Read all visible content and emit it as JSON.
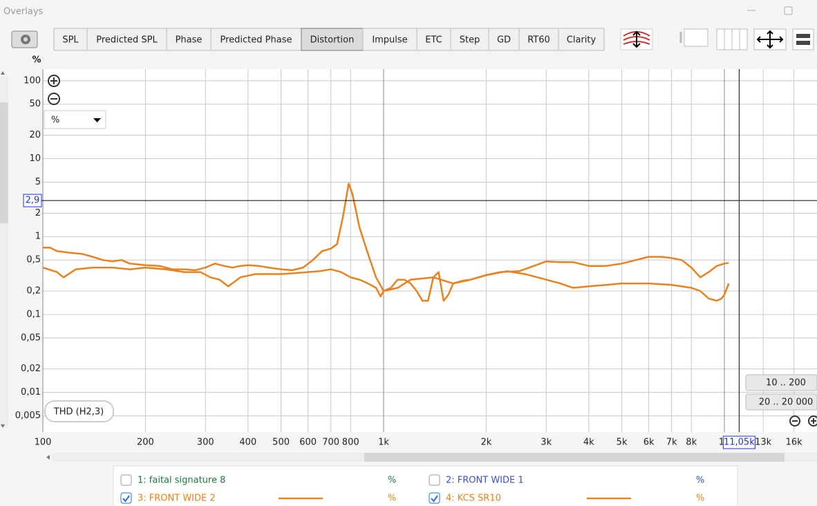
{
  "window_title": "Overlays",
  "tabs": [
    "SPL",
    "Predicted SPL",
    "Phase",
    "Predicted Phase",
    "Distortion",
    "Impulse",
    "ETC",
    "Step",
    "GD",
    "RT60",
    "Clarity"
  ],
  "active_tab": 4,
  "y_unit_label": "%",
  "unit_select": "%",
  "range_buttons": [
    "10 .. 200",
    "20 .. 20 000"
  ],
  "chart_data": {
    "type": "line",
    "trace_label": "THD (H2,3)",
    "xscale": "log",
    "yscale": "log",
    "grid": true,
    "xlim": [
      100,
      18700
    ],
    "ylim": [
      0.0031,
      141
    ],
    "xticks": [
      100,
      200,
      300,
      400,
      500,
      600,
      700,
      800,
      {
        "value": 1000,
        "label": "1k"
      },
      {
        "value": 2000,
        "label": "2k"
      },
      {
        "value": 3000,
        "label": "3k"
      },
      {
        "value": 4000,
        "label": "4k"
      },
      {
        "value": 5000,
        "label": "5k"
      },
      {
        "value": 6000,
        "label": "6k"
      },
      {
        "value": 7000,
        "label": "7k"
      },
      {
        "value": 8000,
        "label": "8k"
      },
      {
        "value": 10000,
        "label": "1"
      },
      {
        "value": 13000,
        "label": "13k"
      },
      {
        "value": 16000,
        "label": "16k"
      }
    ],
    "yticks": [
      100,
      50,
      20,
      10,
      5,
      2,
      1,
      {
        "value": 0.5,
        "label": "0,5"
      },
      {
        "value": 0.2,
        "label": "0,2"
      },
      {
        "value": 0.1,
        "label": "0,1"
      },
      {
        "value": 0.05,
        "label": "0,05"
      },
      {
        "value": 0.02,
        "label": "0,02"
      },
      {
        "value": 0.01,
        "label": "0,01"
      },
      {
        "value": 0.005,
        "label": "0,005"
      }
    ],
    "cursor": {
      "x": {
        "value": 11050,
        "label": "11,05k"
      },
      "y": {
        "value": 2.9,
        "label": "2,9"
      }
    },
    "series": [
      {
        "name": "1: faital signature 8",
        "color": "#1e7a3c",
        "checked": false,
        "unit": "%"
      },
      {
        "name": "2: FRONT WIDE 1",
        "color": "#3b4fc6",
        "checked": false,
        "unit": "%"
      },
      {
        "name": "3: FRONT WIDE 2",
        "color": "#e8821e",
        "checked": true,
        "unit": "%",
        "x": [
          100,
          105,
          110,
          120,
          130,
          140,
          150,
          160,
          170,
          180,
          200,
          220,
          240,
          260,
          280,
          300,
          320,
          340,
          360,
          380,
          400,
          430,
          460,
          500,
          540,
          580,
          620,
          660,
          700,
          730,
          760,
          790,
          810,
          850,
          900,
          950,
          1000,
          1050,
          1100,
          1150,
          1200,
          1250,
          1300,
          1350,
          1400,
          1450,
          1500,
          1550,
          1600,
          1700,
          1800,
          2000,
          2200,
          2500,
          2800,
          3000,
          3300,
          3600,
          4000,
          4500,
          5000,
          5500,
          6000,
          6500,
          7000,
          7500,
          8000,
          8500,
          9000,
          9500,
          10000,
          10300
        ],
        "values": [
          0.72,
          0.72,
          0.65,
          0.62,
          0.6,
          0.55,
          0.5,
          0.48,
          0.5,
          0.45,
          0.43,
          0.42,
          0.38,
          0.38,
          0.37,
          0.4,
          0.45,
          0.42,
          0.4,
          0.42,
          0.43,
          0.42,
          0.4,
          0.38,
          0.37,
          0.4,
          0.5,
          0.65,
          0.7,
          0.8,
          1.8,
          4.8,
          3.5,
          1.3,
          0.6,
          0.3,
          0.2,
          0.22,
          0.28,
          0.28,
          0.25,
          0.2,
          0.15,
          0.15,
          0.3,
          0.35,
          0.15,
          0.18,
          0.25,
          0.27,
          0.28,
          0.32,
          0.35,
          0.36,
          0.43,
          0.48,
          0.47,
          0.47,
          0.42,
          0.42,
          0.45,
          0.5,
          0.55,
          0.55,
          0.53,
          0.5,
          0.4,
          0.3,
          0.35,
          0.42,
          0.45,
          0.46
        ]
      },
      {
        "name": "4: KCS SR10",
        "color": "#e8821e",
        "checked": true,
        "unit": "%",
        "x": [
          100,
          110,
          115,
          125,
          140,
          160,
          180,
          200,
          230,
          260,
          290,
          310,
          330,
          350,
          380,
          420,
          460,
          500,
          550,
          600,
          650,
          700,
          750,
          800,
          850,
          900,
          950,
          980,
          1000,
          1100,
          1200,
          1400,
          1600,
          1800,
          2000,
          2300,
          2600,
          3000,
          3300,
          3600,
          4000,
          4500,
          5000,
          6000,
          7000,
          8000,
          8500,
          9000,
          9500,
          9800,
          10000,
          10300
        ],
        "values": [
          0.4,
          0.35,
          0.3,
          0.38,
          0.4,
          0.4,
          0.38,
          0.4,
          0.38,
          0.35,
          0.35,
          0.3,
          0.28,
          0.23,
          0.3,
          0.33,
          0.33,
          0.33,
          0.34,
          0.35,
          0.36,
          0.38,
          0.35,
          0.3,
          0.28,
          0.25,
          0.22,
          0.17,
          0.2,
          0.22,
          0.28,
          0.3,
          0.25,
          0.28,
          0.32,
          0.36,
          0.33,
          0.28,
          0.25,
          0.22,
          0.23,
          0.24,
          0.25,
          0.25,
          0.24,
          0.22,
          0.2,
          0.16,
          0.15,
          0.16,
          0.18,
          0.25
        ]
      }
    ]
  }
}
